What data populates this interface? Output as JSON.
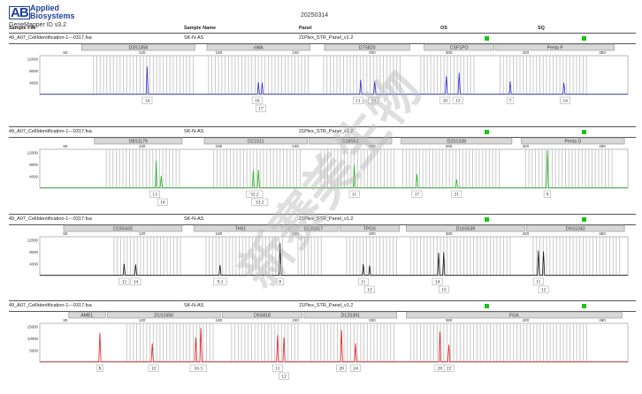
{
  "header": {
    "brand_mark": "AB",
    "brand_line1": "Applied",
    "brand_line2": "Biosystems",
    "app_version": "GeneMapper ID v3.2",
    "date": "20250314",
    "col_sample_file": "Sample File",
    "col_sample_name": "Sample Name",
    "col_panel": "Panel",
    "col_os": "OS",
    "col_sq": "SQ"
  },
  "watermark": {
    "text": "新赛美生物"
  },
  "colors": {
    "blue": "#2a2fd6",
    "green": "#23b523",
    "black": "#111111",
    "red": "#e02020",
    "status": "#19c419"
  },
  "panels": [
    {
      "sample_file": "49_A07_CellIdentification-1---0317.fsa",
      "sample_name": "SK-N-AS",
      "panel": "21Plex_STR_Panel_v1.2",
      "dye": "blue",
      "axis_ticks": [
        60,
        120,
        180,
        240,
        300,
        360,
        420,
        480
      ],
      "y_ticks": [
        12000,
        8000,
        4000
      ],
      "loci": [
        {
          "name": "D3S1358",
          "start": 72,
          "end": 162
        },
        {
          "name": "vWA",
          "start": 170,
          "end": 252
        },
        {
          "name": "D7S820",
          "start": 262,
          "end": 330
        },
        {
          "name": "CSF1PO",
          "start": 340,
          "end": 396
        },
        {
          "name": "Penta F",
          "start": 396,
          "end": 490
        }
      ],
      "peaks": [
        {
          "x": 124,
          "h": 9500
        },
        {
          "x": 211,
          "h": 4200
        },
        {
          "x": 214,
          "h": 4000
        },
        {
          "x": 291,
          "h": 5000
        },
        {
          "x": 302,
          "h": 4600
        },
        {
          "x": 358,
          "h": 6200
        },
        {
          "x": 368,
          "h": 7400
        },
        {
          "x": 408,
          "h": 4500
        },
        {
          "x": 450,
          "h": 4000
        }
      ],
      "alleles": [
        {
          "x": 124,
          "row": 1,
          "label": "14"
        },
        {
          "x": 210,
          "row": 1,
          "label": "16"
        },
        {
          "x": 213,
          "row": 2,
          "label": "17"
        },
        {
          "x": 289,
          "row": 1,
          "label": "11"
        },
        {
          "x": 301,
          "row": 1,
          "label": "13"
        },
        {
          "x": 357,
          "row": 1,
          "label": "10"
        },
        {
          "x": 367,
          "row": 1,
          "label": "13"
        },
        {
          "x": 408,
          "row": 1,
          "label": "7"
        },
        {
          "x": 451,
          "row": 1,
          "label": "14"
        }
      ],
      "bins_ranges": [
        [
          82,
          160
        ],
        [
          172,
          250
        ],
        [
          262,
          322
        ],
        [
          338,
          380
        ],
        [
          400,
          470
        ]
      ]
    },
    {
      "sample_file": "49_A07_CellIdentification-1---0317.fsa",
      "sample_name": "SK-N-AS",
      "panel": "21Plex_STR_Panel_v1.2",
      "dye": "green",
      "axis_ticks": [
        60,
        120,
        180,
        240,
        300,
        360,
        420,
        480
      ],
      "y_ticks": [
        12000,
        8000,
        4000
      ],
      "loci": [
        {
          "name": "D8S1179",
          "start": 82,
          "end": 152
        },
        {
          "name": "D21S11",
          "start": 168,
          "end": 250
        },
        {
          "name": "D18S51",
          "start": 250,
          "end": 316
        },
        {
          "name": "D2S1338",
          "start": 322,
          "end": 410
        },
        {
          "name": "Penta D",
          "start": 416,
          "end": 498
        }
      ],
      "peaks": [
        {
          "x": 131,
          "h": 9300
        },
        {
          "x": 135,
          "h": 4200
        },
        {
          "x": 207,
          "h": 6000
        },
        {
          "x": 211,
          "h": 6200
        },
        {
          "x": 286,
          "h": 8000
        },
        {
          "x": 335,
          "h": 4700
        },
        {
          "x": 366,
          "h": 3000
        },
        {
          "x": 437,
          "h": 12800
        }
      ],
      "alleles": [
        {
          "x": 130,
          "row": 1,
          "label": "13"
        },
        {
          "x": 136,
          "row": 2,
          "label": "14"
        },
        {
          "x": 208,
          "row": 1,
          "label": "32.2"
        },
        {
          "x": 212,
          "row": 2,
          "label": "33.2"
        },
        {
          "x": 286,
          "row": 1,
          "label": "11"
        },
        {
          "x": 335,
          "row": 1,
          "label": "17"
        },
        {
          "x": 366,
          "row": 1,
          "label": "21"
        },
        {
          "x": 437,
          "row": 1,
          "label": "9"
        }
      ],
      "bins_ranges": [
        [
          92,
          150
        ],
        [
          176,
          246
        ],
        [
          260,
          318
        ],
        [
          324,
          402
        ],
        [
          420,
          490
        ]
      ]
    },
    {
      "sample_file": "49_A07_CellIdentification-1---0317.fsa",
      "sample_name": "SK-N-AS",
      "panel": "21Plex_STR_Panel_v1.2",
      "dye": "black",
      "axis_ticks": [
        60,
        120,
        180,
        240,
        300,
        360,
        420,
        480
      ],
      "y_ticks": [
        12000,
        8000,
        4000
      ],
      "loci": [
        {
          "name": "D19S433",
          "start": 58,
          "end": 152
        },
        {
          "name": "TH01",
          "start": 160,
          "end": 234
        },
        {
          "name": "D13S317",
          "start": 234,
          "end": 274
        },
        {
          "name": "TPOX",
          "start": 274,
          "end": 322
        },
        {
          "name": "D16S539",
          "start": 326,
          "end": 420
        },
        {
          "name": "D6S1043",
          "start": 420,
          "end": 498
        }
      ],
      "peaks": [
        {
          "x": 106,
          "h": 4000
        },
        {
          "x": 115,
          "h": 3800
        },
        {
          "x": 181,
          "h": 3600
        },
        {
          "x": 228,
          "h": 11000
        },
        {
          "x": 293,
          "h": 3900
        },
        {
          "x": 298,
          "h": 3400
        },
        {
          "x": 352,
          "h": 7800
        },
        {
          "x": 356,
          "h": 8000
        },
        {
          "x": 430,
          "h": 8500
        },
        {
          "x": 434,
          "h": 8200
        }
      ],
      "alleles": [
        {
          "x": 106,
          "row": 1,
          "label": "12"
        },
        {
          "x": 115,
          "row": 1,
          "label": "14"
        },
        {
          "x": 181,
          "row": 1,
          "label": "9.3"
        },
        {
          "x": 228,
          "row": 1,
          "label": "8"
        },
        {
          "x": 293,
          "row": 1,
          "label": "11"
        },
        {
          "x": 298,
          "row": 2,
          "label": "12"
        },
        {
          "x": 351,
          "row": 1,
          "label": "14"
        },
        {
          "x": 356,
          "row": 2,
          "label": "13"
        },
        {
          "x": 430,
          "row": 1,
          "label": "11"
        },
        {
          "x": 434,
          "row": 2,
          "label": "12"
        }
      ],
      "bins_ranges": [
        [
          98,
          150
        ],
        [
          170,
          230
        ],
        [
          242,
          262
        ],
        [
          280,
          320
        ],
        [
          330,
          410
        ],
        [
          426,
          494
        ]
      ]
    },
    {
      "sample_file": "49_A07_CellIdentification-1---0317.fsa",
      "sample_name": "SK-N-AS",
      "panel": "21Plex_STR_Panel_v1.2",
      "dye": "red",
      "axis_ticks": [
        60,
        120,
        180,
        240,
        300,
        360,
        420,
        480
      ],
      "y_ticks": [
        15000,
        10000,
        5000
      ],
      "loci": [
        {
          "name": "AMEL",
          "start": 62,
          "end": 92
        },
        {
          "name": "D1S1656",
          "start": 92,
          "end": 182
        },
        {
          "name": "D5S818",
          "start": 182,
          "end": 246
        },
        {
          "name": "D12S391",
          "start": 246,
          "end": 320
        },
        {
          "name": "FGA",
          "start": 326,
          "end": 496
        }
      ],
      "peaks": [
        {
          "x": 87,
          "h": 12500
        },
        {
          "x": 128,
          "h": 8000
        },
        {
          "x": 162,
          "h": 10500
        },
        {
          "x": 166,
          "h": 14500
        },
        {
          "x": 226,
          "h": 11500
        },
        {
          "x": 231,
          "h": 10500
        },
        {
          "x": 276,
          "h": 13500
        },
        {
          "x": 287,
          "h": 8000
        },
        {
          "x": 353,
          "h": 13000
        },
        {
          "x": 360,
          "h": 7500
        }
      ],
      "alleles": [
        {
          "x": 87,
          "row": 1,
          "label": "X"
        },
        {
          "x": 129,
          "row": 1,
          "label": "12"
        },
        {
          "x": 164,
          "row": 1,
          "label": "16.3"
        },
        {
          "x": 226,
          "row": 1,
          "label": "11"
        },
        {
          "x": 231,
          "row": 2,
          "label": "12"
        },
        {
          "x": 276,
          "row": 1,
          "label": "20"
        },
        {
          "x": 287,
          "row": 1,
          "label": "24"
        },
        {
          "x": 353,
          "row": 1,
          "label": "20"
        },
        {
          "x": 360,
          "row": 1,
          "label": "22"
        }
      ],
      "bins_ranges": [
        [
          108,
          178
        ],
        [
          190,
          244
        ],
        [
          252,
          318
        ],
        [
          330,
          470
        ]
      ]
    }
  ]
}
